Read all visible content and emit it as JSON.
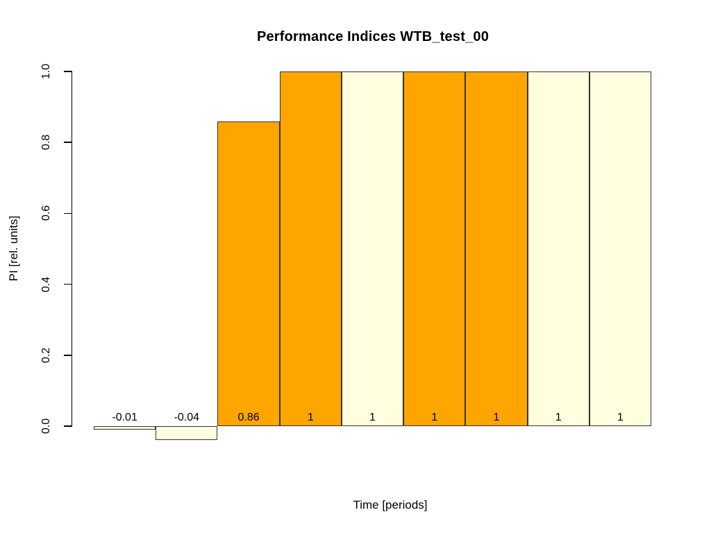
{
  "chart_data": {
    "type": "bar",
    "title": "Performance Indices WTB_test_00",
    "xlabel": "Time [periods]",
    "ylabel": "PI [rel. units]",
    "ylim": [
      0.0,
      1.0
    ],
    "yticks": [
      {
        "value": 0.0,
        "label": "0.0"
      },
      {
        "value": 0.2,
        "label": "0.2"
      },
      {
        "value": 0.4,
        "label": "0.4"
      },
      {
        "value": 0.6,
        "label": "0.6"
      },
      {
        "value": 0.8,
        "label": "0.8"
      },
      {
        "value": 1.0,
        "label": "1.0"
      }
    ],
    "grid": false,
    "legend": null,
    "bars": [
      {
        "value": -0.01,
        "label": "-0.01",
        "color_key": "cream"
      },
      {
        "value": -0.04,
        "label": "-0.04",
        "color_key": "cream"
      },
      {
        "value": 0.86,
        "label": "0.86",
        "color_key": "orange"
      },
      {
        "value": 1,
        "label": "1",
        "color_key": "orange"
      },
      {
        "value": 1,
        "label": "1",
        "color_key": "cream"
      },
      {
        "value": 1,
        "label": "1",
        "color_key": "orange"
      },
      {
        "value": 1,
        "label": "1",
        "color_key": "orange"
      },
      {
        "value": 1,
        "label": "1",
        "color_key": "cream"
      },
      {
        "value": 1,
        "label": "1",
        "color_key": "cream"
      }
    ],
    "colors": {
      "orange": "#FFA500",
      "cream": "#FFFFE0",
      "bar_border": "#333333",
      "axis": "#000000",
      "text": "#000000",
      "background": "#FFFFFF"
    }
  }
}
